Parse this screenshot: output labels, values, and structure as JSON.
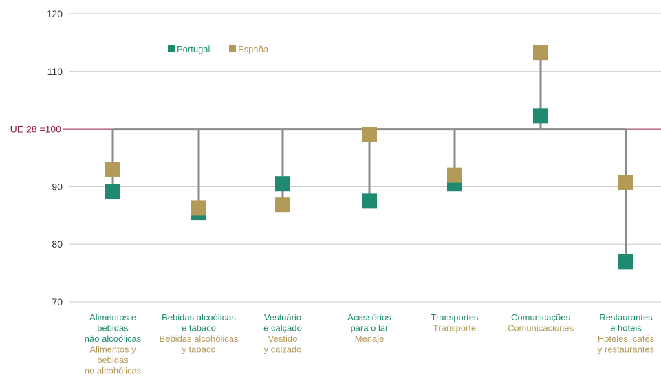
{
  "chart_data": {
    "type": "scatter",
    "reference": {
      "label": "UE 28 =100",
      "value": 100,
      "color": "#8e1b4a"
    },
    "ylim": [
      70,
      120
    ],
    "yticks": [
      "70",
      "80",
      "90",
      "110",
      "120"
    ],
    "grid": true,
    "legend_position": "top-left",
    "series": [
      {
        "name": "Portugal",
        "color": "#1f8a70",
        "values": [
          89.2,
          85.5,
          90.5,
          87.5,
          90.5,
          102.3,
          77
        ]
      },
      {
        "name": "España",
        "color": "#b39a59",
        "values": [
          93,
          86.3,
          86.8,
          99,
          92,
          113.3,
          90.7
        ]
      }
    ],
    "categories": [
      {
        "pt": [
          "Alimentos e",
          "bebidas",
          "não alcoólicas"
        ],
        "es": [
          "Alimentos y",
          "bebidas",
          "no alcohólicas"
        ]
      },
      {
        "pt": [
          "Bebidas alcoólicas",
          "e tabaco"
        ],
        "es": [
          "Bebidas alcohólicas",
          "y tabaco"
        ]
      },
      {
        "pt": [
          "Vestuário",
          "e calçado"
        ],
        "es": [
          "Vestido",
          "y calzado"
        ]
      },
      {
        "pt": [
          "Acessórios",
          "para o lar"
        ],
        "es": [
          "Menaje"
        ]
      },
      {
        "pt": [
          "Transportes"
        ],
        "es": [
          "Transporte"
        ]
      },
      {
        "pt": [
          "Comunicações"
        ],
        "es": [
          "Comunicaciones"
        ]
      },
      {
        "pt": [
          "Restaurantes",
          "e hóteis"
        ],
        "es": [
          "Hoteles, cafés",
          "y restaurantes"
        ]
      }
    ]
  }
}
